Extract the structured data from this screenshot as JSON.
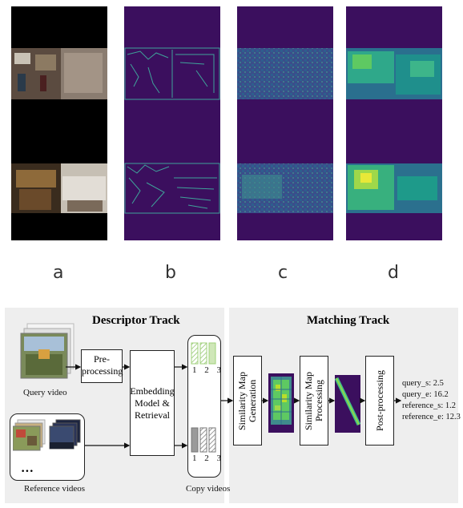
{
  "panels": {
    "a": "a",
    "b": "b",
    "c": "c",
    "d": "d"
  },
  "descriptor": {
    "title": "Descriptor Track",
    "query_label": "Query video",
    "preprocess_label": "Pre-\nprocessing",
    "embedding_label": "Embedding\nModel &\nRetrieval",
    "copy_label": "Copy videos",
    "reference_label": "Reference videos",
    "ellipsis": "•••",
    "copy_index": [
      "1",
      "2",
      "3"
    ]
  },
  "matching": {
    "title": "Matching Track",
    "sim_gen_label": "Similarity Map\nGeneration",
    "sim_proc_label": "Similarity Map\nProcessing",
    "post_label": "Post-processing",
    "results": [
      "query_s: 2.5",
      "query_e: 16.2",
      "reference_s: 1.2",
      "reference_e: 12.3"
    ]
  },
  "colors": {
    "viridis_dark": "#3b0f5e",
    "viridis_teal": "#2a8a8c",
    "viridis_green": "#5ec962",
    "viridis_yellow": "#e8e838",
    "track_bg": "#eeeeee"
  }
}
